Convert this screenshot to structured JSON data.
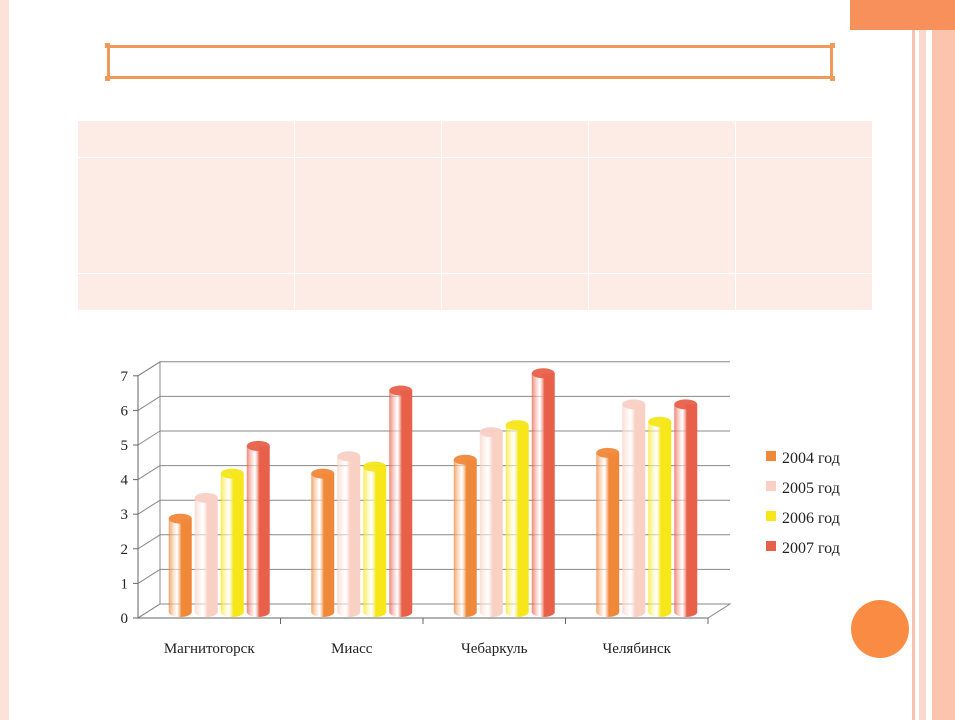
{
  "slide": {
    "title": ""
  },
  "table": {
    "rows": [
      [
        "",
        "",
        "",
        "",
        ""
      ],
      [
        "",
        "",
        "",
        "",
        ""
      ],
      [
        "",
        "",
        "",
        "",
        ""
      ]
    ]
  },
  "chart_data": {
    "type": "bar",
    "title": "",
    "xlabel": "",
    "ylabel": "",
    "ylim": [
      0,
      7
    ],
    "yticks": [
      0,
      1,
      2,
      3,
      4,
      5,
      6,
      7
    ],
    "grid": true,
    "legend_position": "right",
    "categories": [
      "Магнитогорск",
      "Миасс",
      "Чебаркуль",
      "Челябинск"
    ],
    "series": [
      {
        "name": "2004 год",
        "color": "#f0883a",
        "values": [
          2.7,
          4.0,
          4.4,
          4.6
        ]
      },
      {
        "name": "2005 год",
        "color": "#f9d0c4",
        "values": [
          3.3,
          4.5,
          5.2,
          6.0
        ]
      },
      {
        "name": "2006 год",
        "color": "#f6e61a",
        "values": [
          4.0,
          4.2,
          5.4,
          5.5
        ]
      },
      {
        "name": "2007 год",
        "color": "#e8604a",
        "values": [
          4.8,
          6.4,
          6.9,
          6.0
        ]
      }
    ]
  }
}
